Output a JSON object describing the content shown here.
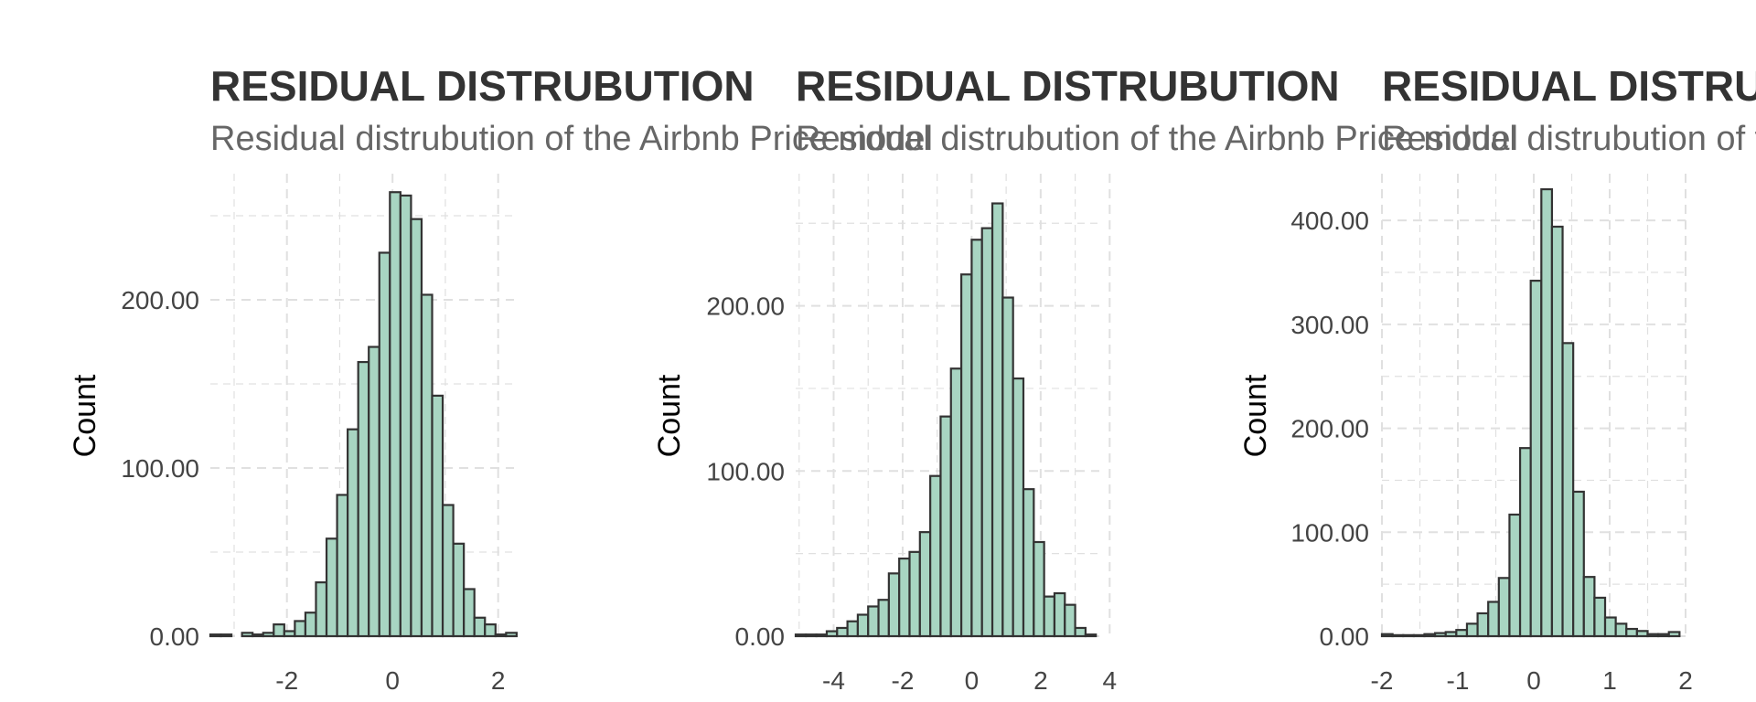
{
  "chart_data": [
    {
      "type": "histogram",
      "title": "RESIDUAL DISTRUBUTION",
      "subtitle": "Residual distrubution of the Airbnb Price model",
      "ylabel": "Count",
      "xlim": [
        -3.45,
        2.3
      ],
      "ylim": [
        0,
        275
      ],
      "x_ticks": [
        "-2",
        "0",
        "2"
      ],
      "y_ticks": [
        "0.00",
        "100.00",
        "200.00"
      ],
      "grid": true,
      "bins": [
        {
          "x0": -3.45,
          "x1": -3.25,
          "count": 1
        },
        {
          "x0": -3.25,
          "x1": -3.05,
          "count": 1
        },
        {
          "x0": -3.05,
          "x1": -2.85,
          "count": 0
        },
        {
          "x0": -2.85,
          "x1": -2.65,
          "count": 2
        },
        {
          "x0": -2.65,
          "x1": -2.45,
          "count": 1
        },
        {
          "x0": -2.45,
          "x1": -2.25,
          "count": 2
        },
        {
          "x0": -2.25,
          "x1": -2.05,
          "count": 7
        },
        {
          "x0": -2.05,
          "x1": -1.85,
          "count": 3
        },
        {
          "x0": -1.85,
          "x1": -1.65,
          "count": 9
        },
        {
          "x0": -1.65,
          "x1": -1.45,
          "count": 14
        },
        {
          "x0": -1.45,
          "x1": -1.25,
          "count": 32
        },
        {
          "x0": -1.25,
          "x1": -1.05,
          "count": 58
        },
        {
          "x0": -1.05,
          "x1": -0.85,
          "count": 84
        },
        {
          "x0": -0.85,
          "x1": -0.65,
          "count": 123
        },
        {
          "x0": -0.65,
          "x1": -0.45,
          "count": 163
        },
        {
          "x0": -0.45,
          "x1": -0.25,
          "count": 172
        },
        {
          "x0": -0.25,
          "x1": -0.05,
          "count": 228
        },
        {
          "x0": -0.05,
          "x1": 0.15,
          "count": 264
        },
        {
          "x0": 0.15,
          "x1": 0.35,
          "count": 262
        },
        {
          "x0": 0.35,
          "x1": 0.55,
          "count": 248
        },
        {
          "x0": 0.55,
          "x1": 0.75,
          "count": 203
        },
        {
          "x0": 0.75,
          "x1": 0.95,
          "count": 143
        },
        {
          "x0": 0.95,
          "x1": 1.15,
          "count": 78
        },
        {
          "x0": 1.15,
          "x1": 1.35,
          "count": 55
        },
        {
          "x0": 1.35,
          "x1": 1.55,
          "count": 28
        },
        {
          "x0": 1.55,
          "x1": 1.75,
          "count": 11
        },
        {
          "x0": 1.75,
          "x1": 1.95,
          "count": 7
        },
        {
          "x0": 1.95,
          "x1": 2.15,
          "count": 1
        },
        {
          "x0": 2.15,
          "x1": 2.35,
          "count": 2
        }
      ]
    },
    {
      "type": "histogram",
      "title": "RESIDUAL DISTRUBUTION",
      "subtitle": "Residual distrubution of the Airbnb Price model",
      "ylabel": "Count",
      "xlim": [
        -5.1,
        3.7
      ],
      "ylim": [
        0,
        280
      ],
      "x_ticks": [
        "-4",
        "-2",
        "0",
        "2",
        "4"
      ],
      "y_ticks": [
        "0.00",
        "100.00",
        "200.00"
      ],
      "grid": true,
      "bins": [
        {
          "x0": -5.1,
          "x1": -4.8,
          "count": 1
        },
        {
          "x0": -4.8,
          "x1": -4.5,
          "count": 1
        },
        {
          "x0": -4.5,
          "x1": -4.2,
          "count": 1
        },
        {
          "x0": -4.2,
          "x1": -3.9,
          "count": 3
        },
        {
          "x0": -3.9,
          "x1": -3.6,
          "count": 5
        },
        {
          "x0": -3.6,
          "x1": -3.3,
          "count": 9
        },
        {
          "x0": -3.3,
          "x1": -3.0,
          "count": 13
        },
        {
          "x0": -3.0,
          "x1": -2.7,
          "count": 18
        },
        {
          "x0": -2.7,
          "x1": -2.4,
          "count": 22
        },
        {
          "x0": -2.4,
          "x1": -2.1,
          "count": 38
        },
        {
          "x0": -2.1,
          "x1": -1.8,
          "count": 47
        },
        {
          "x0": -1.8,
          "x1": -1.5,
          "count": 51
        },
        {
          "x0": -1.5,
          "x1": -1.2,
          "count": 63
        },
        {
          "x0": -1.2,
          "x1": -0.9,
          "count": 97
        },
        {
          "x0": -0.9,
          "x1": -0.6,
          "count": 133
        },
        {
          "x0": -0.6,
          "x1": -0.3,
          "count": 162
        },
        {
          "x0": -0.3,
          "x1": 0.0,
          "count": 219
        },
        {
          "x0": 0.0,
          "x1": 0.3,
          "count": 240
        },
        {
          "x0": 0.3,
          "x1": 0.6,
          "count": 247
        },
        {
          "x0": 0.6,
          "x1": 0.9,
          "count": 262
        },
        {
          "x0": 0.9,
          "x1": 1.2,
          "count": 205
        },
        {
          "x0": 1.2,
          "x1": 1.5,
          "count": 156
        },
        {
          "x0": 1.5,
          "x1": 1.8,
          "count": 89
        },
        {
          "x0": 1.8,
          "x1": 2.1,
          "count": 57
        },
        {
          "x0": 2.1,
          "x1": 2.4,
          "count": 24
        },
        {
          "x0": 2.4,
          "x1": 2.7,
          "count": 26
        },
        {
          "x0": 2.7,
          "x1": 3.0,
          "count": 19
        },
        {
          "x0": 3.0,
          "x1": 3.3,
          "count": 5
        },
        {
          "x0": 3.3,
          "x1": 3.6,
          "count": 1
        }
      ]
    },
    {
      "type": "histogram",
      "title": "RESIDUAL DISTRUBUTION",
      "subtitle": "Residual distrubution of the Airbnb Price model",
      "ylabel": "Count",
      "xlim": [
        -2.0,
        2.0
      ],
      "ylim": [
        0,
        445
      ],
      "x_ticks": [
        "-2",
        "-1",
        "0",
        "1",
        "2"
      ],
      "y_ticks": [
        "0.00",
        "100.00",
        "200.00",
        "300.00",
        "400.00"
      ],
      "grid": true,
      "bins": [
        {
          "x0": -2.0,
          "x1": -1.86,
          "count": 2
        },
        {
          "x0": -1.86,
          "x1": -1.72,
          "count": 1
        },
        {
          "x0": -1.72,
          "x1": -1.58,
          "count": 1
        },
        {
          "x0": -1.58,
          "x1": -1.44,
          "count": 1
        },
        {
          "x0": -1.44,
          "x1": -1.3,
          "count": 2
        },
        {
          "x0": -1.3,
          "x1": -1.16,
          "count": 3
        },
        {
          "x0": -1.16,
          "x1": -1.02,
          "count": 4
        },
        {
          "x0": -1.02,
          "x1": -0.88,
          "count": 6
        },
        {
          "x0": -0.88,
          "x1": -0.74,
          "count": 12
        },
        {
          "x0": -0.74,
          "x1": -0.6,
          "count": 22
        },
        {
          "x0": -0.6,
          "x1": -0.46,
          "count": 33
        },
        {
          "x0": -0.46,
          "x1": -0.32,
          "count": 56
        },
        {
          "x0": -0.32,
          "x1": -0.18,
          "count": 117
        },
        {
          "x0": -0.18,
          "x1": -0.04,
          "count": 181
        },
        {
          "x0": -0.04,
          "x1": 0.1,
          "count": 342
        },
        {
          "x0": 0.1,
          "x1": 0.24,
          "count": 430
        },
        {
          "x0": 0.24,
          "x1": 0.38,
          "count": 394
        },
        {
          "x0": 0.38,
          "x1": 0.52,
          "count": 282
        },
        {
          "x0": 0.52,
          "x1": 0.66,
          "count": 139
        },
        {
          "x0": 0.66,
          "x1": 0.8,
          "count": 57
        },
        {
          "x0": 0.8,
          "x1": 0.94,
          "count": 37
        },
        {
          "x0": 0.94,
          "x1": 1.08,
          "count": 18
        },
        {
          "x0": 1.08,
          "x1": 1.22,
          "count": 12
        },
        {
          "x0": 1.22,
          "x1": 1.36,
          "count": 7
        },
        {
          "x0": 1.36,
          "x1": 1.5,
          "count": 5
        },
        {
          "x0": 1.5,
          "x1": 1.64,
          "count": 2
        },
        {
          "x0": 1.64,
          "x1": 1.78,
          "count": 2
        },
        {
          "x0": 1.78,
          "x1": 1.92,
          "count": 4
        }
      ]
    }
  ],
  "colors": {
    "bar_fill": "#a8d5c2",
    "bar_stroke": "#333333",
    "title": "#333333",
    "subtitle": "#666666",
    "tick_label": "#444444",
    "axis_label": "#000000",
    "grid": "#e0e0e0"
  }
}
